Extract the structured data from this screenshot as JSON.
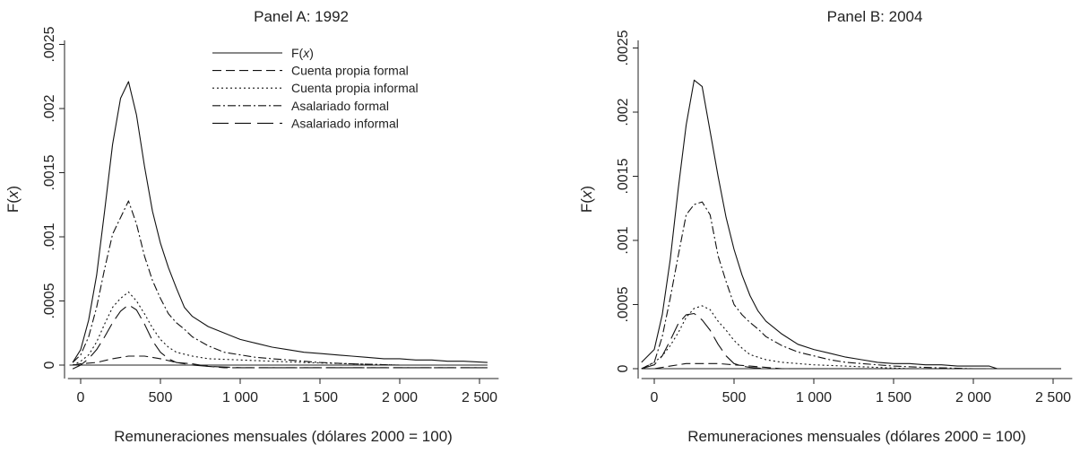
{
  "chart_data": [
    {
      "type": "line",
      "title": "Panel A: 1992",
      "xlabel": "Remuneraciones mensuales (dólares 2000 = 100)",
      "ylabel_prefix": "F(",
      "ylabel_var": "x",
      "ylabel_suffix": ")",
      "xlim": [
        -80,
        2620
      ],
      "ylim": [
        -8e-05,
        0.0025
      ],
      "xticks": [
        0,
        500,
        1000,
        1500,
        2000,
        2500
      ],
      "xtick_labels": [
        "0",
        "500",
        "1 000",
        "1 500",
        "2 000",
        "2 500"
      ],
      "yticks": [
        0,
        0.0005,
        0.001,
        0.0015,
        0.002,
        0.0025
      ],
      "ytick_labels": [
        "0",
        ".0005",
        ".001",
        ".0015",
        ".002",
        ".0025"
      ],
      "grid": false,
      "legend": {
        "placement": "top-center",
        "entries": [
          {
            "prefix": "F(",
            "var": "x",
            "suffix": ")",
            "style": "solid"
          },
          {
            "label": "Cuenta propia formal",
            "style": "dash"
          },
          {
            "label": "Cuenta propia informal",
            "style": "dot"
          },
          {
            "label": "Asalariado formal",
            "style": "dashdot"
          },
          {
            "label": "Asalariado informal",
            "style": "longdash"
          }
        ]
      },
      "series": [
        {
          "name": "F(x)",
          "style": "solid",
          "x": [
            -50,
            0,
            50,
            100,
            150,
            200,
            250,
            300,
            350,
            400,
            450,
            500,
            550,
            600,
            650,
            700,
            800,
            900,
            1000,
            1100,
            1200,
            1300,
            1400,
            1500,
            1600,
            1700,
            1800,
            1900,
            2000,
            2100,
            2200,
            2300,
            2400,
            2550
          ],
          "y": [
            2e-05,
            0.00012,
            0.00035,
            0.0007,
            0.0012,
            0.00172,
            0.00208,
            0.00221,
            0.00195,
            0.00155,
            0.0012,
            0.00095,
            0.00076,
            0.0006,
            0.00045,
            0.00038,
            0.0003,
            0.00025,
            0.0002,
            0.00017,
            0.00014,
            0.00012,
            0.0001,
            9e-05,
            8e-05,
            7e-05,
            6e-05,
            5e-05,
            5e-05,
            4e-05,
            4e-05,
            3e-05,
            3e-05,
            2e-05
          ]
        },
        {
          "name": "Cuenta propia formal",
          "style": "dash",
          "x": [
            -50,
            0,
            100,
            200,
            300,
            400,
            500,
            600,
            700,
            800,
            900,
            1000,
            1200,
            1500,
            2000,
            2550
          ],
          "y": [
            0,
            1e-05,
            2e-05,
            5e-05,
            7e-05,
            7e-05,
            5e-05,
            2e-05,
            1e-05,
            -1e-05,
            -2e-05,
            -2e-05,
            -2e-05,
            -2e-05,
            -2e-05,
            -2e-05
          ]
        },
        {
          "name": "Cuenta propia informal",
          "style": "dot",
          "x": [
            -50,
            0,
            50,
            100,
            150,
            200,
            250,
            300,
            350,
            400,
            450,
            500,
            550,
            600,
            700,
            800,
            1000,
            1200,
            1400,
            1700,
            2000
          ],
          "y": [
            0,
            3e-05,
            8e-05,
            0.00018,
            0.00032,
            0.00045,
            0.00052,
            0.00057,
            0.0005,
            0.0004,
            0.00029,
            0.0002,
            0.00014,
            0.0001,
            7e-05,
            5e-05,
            4e-05,
            3e-05,
            2e-05,
            1e-05,
            0
          ]
        },
        {
          "name": "Asalariado formal",
          "style": "dashdot",
          "x": [
            -50,
            0,
            50,
            100,
            150,
            200,
            250,
            300,
            350,
            400,
            450,
            500,
            550,
            600,
            650,
            700,
            800,
            900,
            1000,
            1100,
            1200,
            1300,
            1400,
            1500,
            1700,
            2000
          ],
          "y": [
            2e-05,
            8e-05,
            0.00022,
            0.00045,
            0.00075,
            0.00102,
            0.00115,
            0.00128,
            0.0011,
            0.00085,
            0.00066,
            0.00052,
            0.0004,
            0.00033,
            0.00028,
            0.00022,
            0.00015,
            0.0001,
            8e-05,
            6e-05,
            5e-05,
            4e-05,
            3e-05,
            2e-05,
            1e-05,
            0
          ]
        },
        {
          "name": "Asalariado informal",
          "style": "longdash",
          "x": [
            -50,
            0,
            50,
            100,
            150,
            200,
            250,
            300,
            350,
            400,
            450,
            500,
            550,
            600,
            700,
            800,
            1000,
            1500,
            2000,
            2550
          ],
          "y": [
            -3e-05,
            0,
            5e-05,
            0.00012,
            0.00022,
            0.00033,
            0.00042,
            0.00047,
            0.00043,
            0.00032,
            0.00019,
            0.0001,
            5e-05,
            2e-05,
            0,
            -1e-05,
            -2e-05,
            -2e-05,
            -2e-05,
            -2e-05
          ]
        }
      ]
    },
    {
      "type": "line",
      "title": "Panel B: 2004",
      "xlabel": "Remuneraciones mensuales (dólares 2000 = 100)",
      "ylabel_prefix": "F(",
      "ylabel_var": "x",
      "ylabel_suffix": ")",
      "xlim": [
        -80,
        2620
      ],
      "ylim": [
        -8e-05,
        0.0025
      ],
      "xticks": [
        0,
        500,
        1000,
        1500,
        2000,
        2500
      ],
      "xtick_labels": [
        "0",
        "500",
        "1 000",
        "1 500",
        "2 000",
        "2 500"
      ],
      "yticks": [
        0,
        0.0005,
        0.001,
        0.0015,
        0.002,
        0.0025
      ],
      "ytick_labels": [
        "0",
        ".0005",
        ".001",
        ".0015",
        ".002",
        ".0025"
      ],
      "grid": false,
      "series": [
        {
          "name": "F(x)",
          "style": "solid",
          "x": [
            -80,
            -40,
            0,
            50,
            100,
            150,
            200,
            250,
            300,
            350,
            400,
            450,
            500,
            550,
            600,
            650,
            700,
            800,
            900,
            1000,
            1100,
            1200,
            1300,
            1400,
            1500,
            1600,
            1700,
            1800,
            1900,
            2000,
            2100,
            2150,
            2550
          ],
          "y": [
            5e-05,
            0.0001,
            0.00015,
            0.00042,
            0.00085,
            0.0014,
            0.0019,
            0.00225,
            0.0022,
            0.00185,
            0.0015,
            0.00118,
            0.00093,
            0.00073,
            0.00057,
            0.00045,
            0.00037,
            0.00027,
            0.00019,
            0.00015,
            0.00012,
            9e-05,
            7e-05,
            5e-05,
            4e-05,
            4e-05,
            3e-05,
            3e-05,
            2e-05,
            2e-05,
            2e-05,
            0,
            0
          ]
        },
        {
          "name": "Cuenta propia formal",
          "style": "dash",
          "x": [
            -80,
            0,
            100,
            200,
            300,
            400,
            500,
            600,
            700,
            800,
            1000,
            1200,
            1500,
            2000,
            2550
          ],
          "y": [
            0,
            0,
            2e-05,
            4e-05,
            4e-05,
            4e-05,
            3e-05,
            2e-05,
            1e-05,
            0,
            0,
            0,
            0,
            0,
            0
          ]
        },
        {
          "name": "Cuenta propia informal",
          "style": "dot",
          "x": [
            -80,
            0,
            50,
            100,
            150,
            200,
            250,
            300,
            350,
            400,
            450,
            500,
            550,
            600,
            700,
            800,
            900,
            1000,
            1200,
            1400,
            1600
          ],
          "y": [
            0,
            5e-05,
            0.0001,
            0.00018,
            0.00028,
            0.0004,
            0.00047,
            0.00049,
            0.00046,
            0.00037,
            0.0003,
            0.00022,
            0.00016,
            0.00011,
            7e-05,
            5e-05,
            4e-05,
            3e-05,
            2e-05,
            1e-05,
            0
          ]
        },
        {
          "name": "Asalariado formal",
          "style": "dashdot",
          "x": [
            -80,
            0,
            50,
            100,
            150,
            200,
            250,
            300,
            350,
            400,
            450,
            500,
            550,
            600,
            650,
            700,
            800,
            900,
            1000,
            1100,
            1200,
            1300,
            1400,
            1500,
            1700,
            2000
          ],
          "y": [
            0,
            5e-05,
            0.00025,
            0.00055,
            0.00088,
            0.0012,
            0.00128,
            0.0013,
            0.0012,
            0.00088,
            0.00068,
            0.0005,
            0.00042,
            0.00036,
            0.00031,
            0.00025,
            0.00018,
            0.00013,
            0.0001,
            7e-05,
            5e-05,
            4e-05,
            3e-05,
            2e-05,
            1e-05,
            0
          ]
        },
        {
          "name": "Asalariado informal",
          "style": "longdash",
          "x": [
            -80,
            0,
            50,
            100,
            150,
            200,
            250,
            300,
            350,
            400,
            450,
            500,
            550,
            600,
            700,
            800,
            1000,
            1500,
            2000,
            2550
          ],
          "y": [
            0,
            3e-05,
            0.0001,
            0.00022,
            0.00035,
            0.00042,
            0.00043,
            0.00038,
            0.0003,
            0.00019,
            0.0001,
            4e-05,
            2e-05,
            1e-05,
            0,
            0,
            0,
            0,
            0,
            0
          ]
        }
      ]
    }
  ]
}
